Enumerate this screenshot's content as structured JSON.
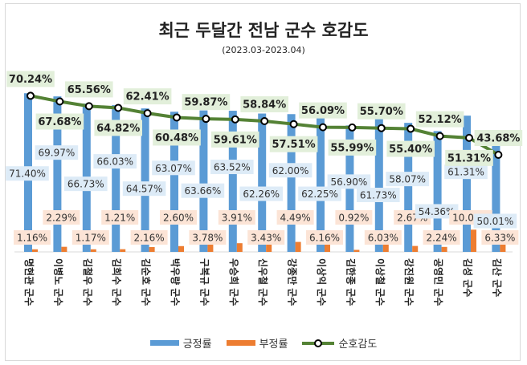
{
  "chart_data": {
    "type": "bar",
    "title": "최근 두달간 전남 군수 호감도",
    "subtitle": "(2023.03-2023.04)",
    "categories": [
      "명현관 군수",
      "이병노 군수",
      "김철우 군수",
      "김희수 군수",
      "김순호 군수",
      "박우량 군수",
      "구복규 군수",
      "우승희 군수",
      "신우철 군수",
      "강종만 군수",
      "이상익 군수",
      "김한종 군수",
      "이상철 군수",
      "강진원 군수",
      "공영민 군수",
      "김성 군수",
      "김산 군수"
    ],
    "series": [
      {
        "name": "긍정률",
        "type": "bar",
        "color": "#5b9bd5",
        "values": [
          71.4,
          69.97,
          66.73,
          66.03,
          64.57,
          63.07,
          63.66,
          63.52,
          62.26,
          62.0,
          62.25,
          56.9,
          61.73,
          58.07,
          54.36,
          61.31,
          50.01
        ]
      },
      {
        "name": "부정률",
        "type": "bar",
        "color": "#ed7d31",
        "values": [
          1.16,
          2.29,
          1.17,
          1.21,
          2.16,
          2.6,
          3.78,
          3.91,
          3.43,
          4.49,
          6.16,
          0.92,
          6.03,
          2.67,
          2.24,
          10.0,
          6.33
        ]
      },
      {
        "name": "순호감도",
        "type": "line",
        "color": "#548235",
        "values": [
          70.24,
          67.68,
          65.56,
          64.82,
          62.41,
          60.48,
          59.87,
          59.61,
          58.84,
          57.51,
          56.09,
          55.99,
          55.7,
          55.4,
          52.12,
          51.31,
          43.68
        ]
      }
    ],
    "value_format": "%",
    "ylim": [
      0,
      80
    ],
    "grid": false,
    "legend": "bottom"
  }
}
